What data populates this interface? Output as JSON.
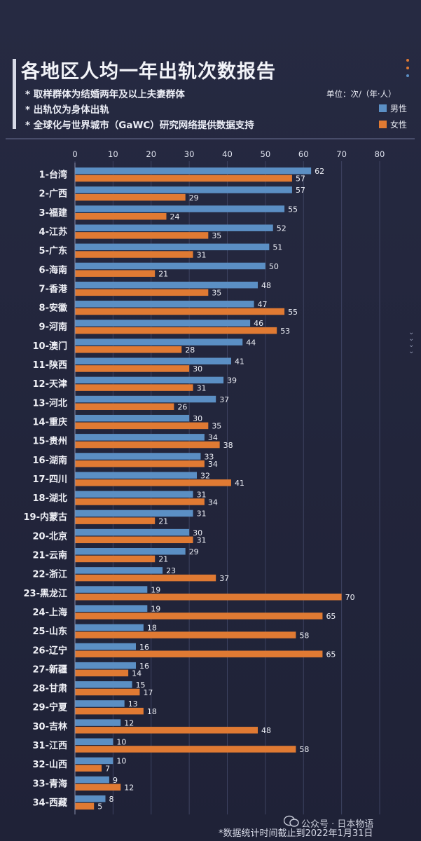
{
  "page": {
    "title": "各地区人均一年出轨次数报告",
    "notes": [
      "* 取样群体为结婚两年及以上夫妻群体",
      "* 出轨仅为身体出轨",
      "* 全球化与世界城市（GaWC）研究网络提供数据支持"
    ],
    "unit": "单位：次/（年·人）",
    "footer": "*数据统计时间截止到2022年1月31日",
    "watermark": "公众号 · 日本物语",
    "colors": {
      "background": "#23263d",
      "male": "#5b8fc4",
      "female": "#e07a33",
      "grid": "#3d4260",
      "accent_dots": [
        "#e07a33",
        "#e07a33",
        "#5b8fc4"
      ]
    }
  },
  "chart_data": {
    "type": "bar",
    "orientation": "horizontal",
    "xlim": [
      0,
      80
    ],
    "xticks": [
      0,
      10,
      20,
      30,
      40,
      50,
      60,
      70,
      80
    ],
    "grid": true,
    "legend_position": "top-right",
    "categories": [
      "1-台湾",
      "2-广西",
      "3-福建",
      "4-江苏",
      "5-广东",
      "6-海南",
      "7-香港",
      "8-安徽",
      "9-河南",
      "10-澳门",
      "11-陕西",
      "12-天津",
      "13-河北",
      "14-重庆",
      "15-贵州",
      "16-湖南",
      "17-四川",
      "18-湖北",
      "19-内蒙古",
      "20-北京",
      "21-云南",
      "22-浙江",
      "23-黑龙江",
      "24-上海",
      "25-山东",
      "26-辽宁",
      "27-新疆",
      "28-甘肃",
      "29-宁夏",
      "30-吉林",
      "31-江西",
      "32-山西",
      "33-青海",
      "34-西藏"
    ],
    "series": [
      {
        "name": "男性",
        "values": [
          62,
          57,
          55,
          52,
          51,
          50,
          48,
          47,
          46,
          44,
          41,
          39,
          37,
          30,
          34,
          33,
          32,
          31,
          31,
          30,
          29,
          23,
          19,
          19,
          18,
          16,
          16,
          15,
          13,
          12,
          10,
          10,
          9,
          8
        ]
      },
      {
        "name": "女性",
        "values": [
          57,
          29,
          24,
          35,
          31,
          21,
          35,
          55,
          53,
          28,
          30,
          31,
          26,
          35,
          38,
          34,
          41,
          34,
          21,
          31,
          21,
          37,
          70,
          65,
          58,
          65,
          14,
          17,
          18,
          48,
          58,
          7,
          12,
          5
        ]
      }
    ]
  }
}
